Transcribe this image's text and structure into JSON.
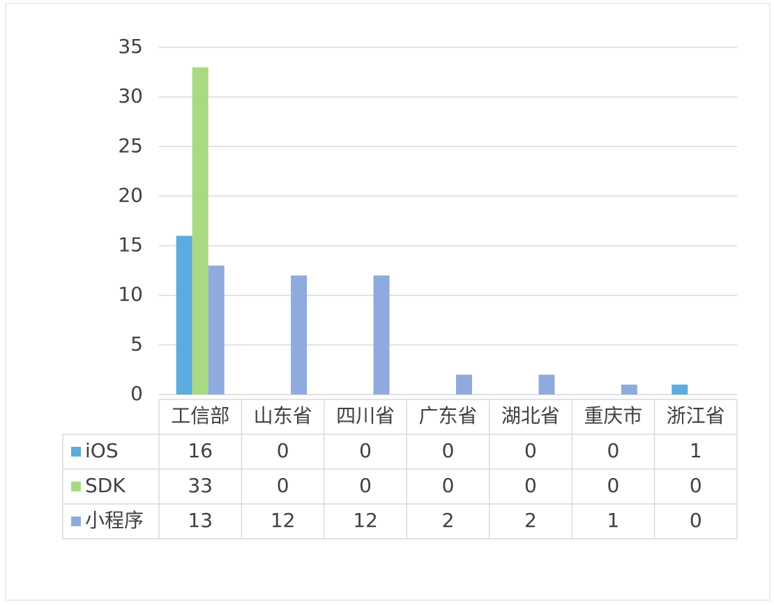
{
  "chart_data": {
    "type": "bar",
    "categories": [
      "工信部",
      "山东省",
      "四川省",
      "广东省",
      "湖北省",
      "重庆市",
      "浙江省"
    ],
    "series": [
      {
        "name": "iOS",
        "color": "#5bacdf",
        "values": [
          16,
          0,
          0,
          0,
          0,
          0,
          1
        ]
      },
      {
        "name": "SDK",
        "color": "#a9d982",
        "values": [
          33,
          0,
          0,
          0,
          0,
          0,
          0
        ]
      },
      {
        "name": "小程序",
        "color": "#8faadc",
        "values": [
          13,
          12,
          12,
          2,
          2,
          1,
          0
        ]
      }
    ],
    "ylim": [
      0,
      35
    ],
    "yticks": [
      0,
      5,
      10,
      15,
      20,
      25,
      30,
      35
    ],
    "grid": true,
    "data_table": true
  }
}
